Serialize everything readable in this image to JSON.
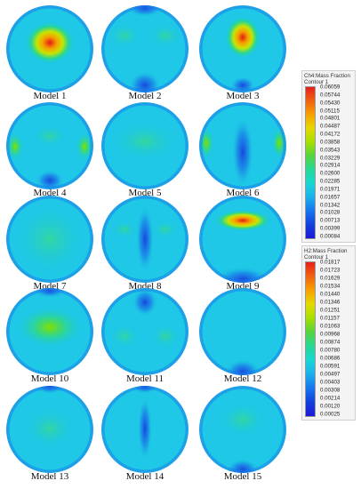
{
  "models": [
    {
      "label": "Model 1"
    },
    {
      "label": "Model 2"
    },
    {
      "label": "Model 3"
    },
    {
      "label": "Model 4"
    },
    {
      "label": "Model 5"
    },
    {
      "label": "Model 6"
    },
    {
      "label": "Model 7"
    },
    {
      "label": "Model 8"
    },
    {
      "label": "Model 9"
    },
    {
      "label": "Model 10"
    },
    {
      "label": "Model 11"
    },
    {
      "label": "Model 12"
    },
    {
      "label": "Model 13"
    },
    {
      "label": "Model 14"
    },
    {
      "label": "Model 15"
    }
  ],
  "legends": {
    "ch4": {
      "title_line1": "Ch4:Mass Fraction",
      "title_line2": "Contour 1",
      "values": [
        "0.06059",
        "0.05744",
        "0.05430",
        "0.05115",
        "0.04801",
        "0.04487",
        "0.04172",
        "0.03858",
        "0.03543",
        "0.03229",
        "0.02914",
        "0.02600",
        "0.02285",
        "0.01971",
        "0.01657",
        "0.01342",
        "0.01028",
        "0.00713",
        "0.00399",
        "0.00084"
      ]
    },
    "h2": {
      "title_line1": "H2:Mass Fraction",
      "title_line2": "Contour 1",
      "values": [
        "0.01817",
        "0.01723",
        "0.01629",
        "0.01534",
        "0.01440",
        "0.01346",
        "0.01251",
        "0.01157",
        "0.01063",
        "0.00968",
        "0.00874",
        "0.00780",
        "0.00686",
        "0.00591",
        "0.00497",
        "0.00403",
        "0.00308",
        "0.00214",
        "0.00120",
        "0.00025"
      ]
    }
  },
  "colors": {
    "low": "#1e3cdc",
    "mid": "#1ec8e6",
    "high": "#e61e1e"
  }
}
